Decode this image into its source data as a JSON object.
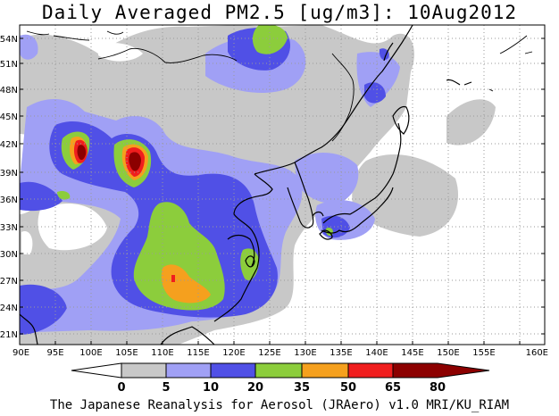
{
  "title": "Daily Averaged PM2.5 [ug/m3]: 10Aug2012",
  "footer": "The Japanese Reanalysis for Aerosol (JRAero) v1.0 MRI/KU_RIAM",
  "lon_labels": [
    "90E",
    "95E",
    "100E",
    "105E",
    "110E",
    "115E",
    "120E",
    "125E",
    "130E",
    "135E",
    "140E",
    "145E",
    "150E",
    "155E",
    "160E"
  ],
  "lat_labels": [
    "54N",
    "51N",
    "48N",
    "45N",
    "42N",
    "39N",
    "36N",
    "33N",
    "30N",
    "27N",
    "24N",
    "21N"
  ],
  "colorbar": {
    "levels": [
      "0",
      "5",
      "10",
      "20",
      "35",
      "50",
      "65",
      "80"
    ],
    "colors": [
      "#ffffff",
      "#c8c8c8",
      "#a0a0f5",
      "#5050e6",
      "#8ccd3c",
      "#f5a01e",
      "#f01e1e",
      "#8c0000"
    ]
  }
}
